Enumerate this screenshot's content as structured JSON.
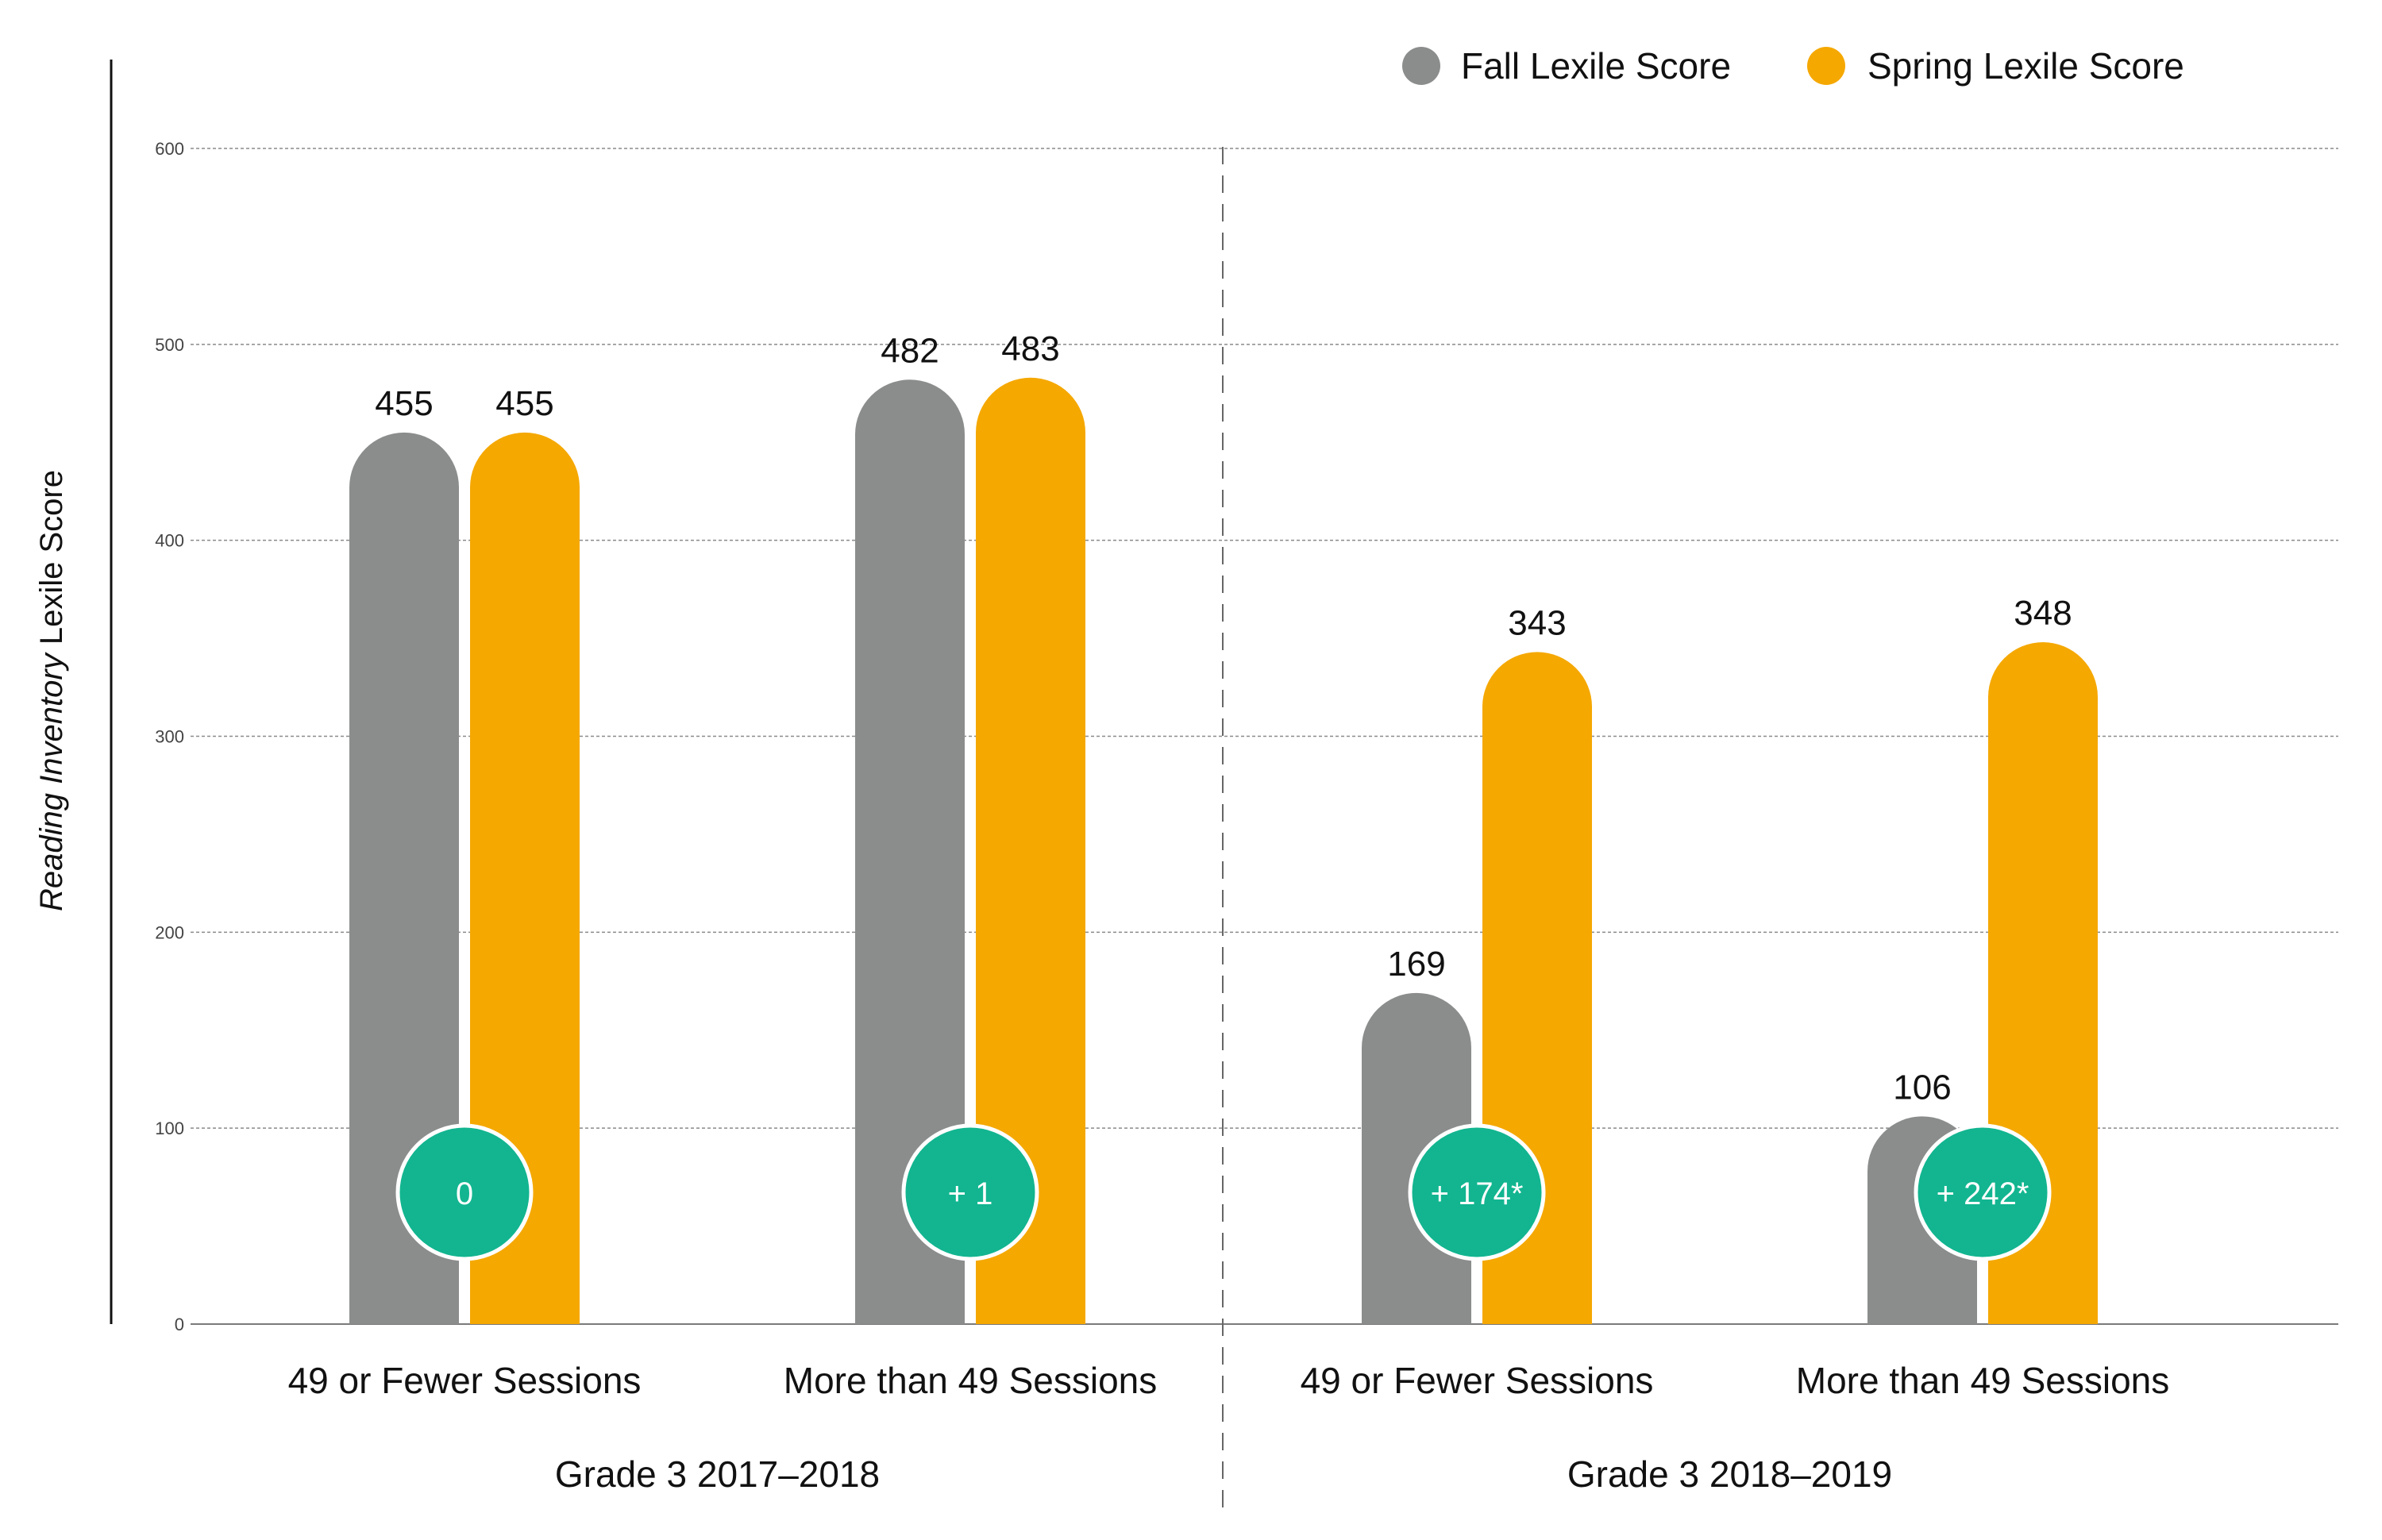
{
  "chart_data": {
    "type": "bar",
    "ylabel_italic": "Reading Inventory",
    "ylabel_rest": "Lexile Score",
    "ylim": [
      0,
      600
    ],
    "yticks": [
      0,
      100,
      200,
      300,
      400,
      500,
      600
    ],
    "grid": true,
    "legend_position": "top-right",
    "series": [
      {
        "name": "Fall Lexile Score",
        "color": "#8b8d8c"
      },
      {
        "name": "Spring Lexile Score",
        "color": "#f5a800"
      }
    ],
    "groups": [
      {
        "label": "Grade 3 2017–2018",
        "categories": [
          {
            "label": "49 or Fewer Sessions",
            "fall": 455,
            "spring": 455,
            "change": "0"
          },
          {
            "label": "More than 49 Sessions",
            "fall": 482,
            "spring": 483,
            "change": "+ 1"
          }
        ]
      },
      {
        "label": "Grade 3 2018–2019",
        "categories": [
          {
            "label": "49 or Fewer Sessions",
            "fall": 169,
            "spring": 343,
            "change": "+ 174*"
          },
          {
            "label": "More than 49 Sessions",
            "fall": 106,
            "spring": 348,
            "change": "+ 242*"
          }
        ]
      }
    ],
    "change_badge_color": "#12b590"
  }
}
